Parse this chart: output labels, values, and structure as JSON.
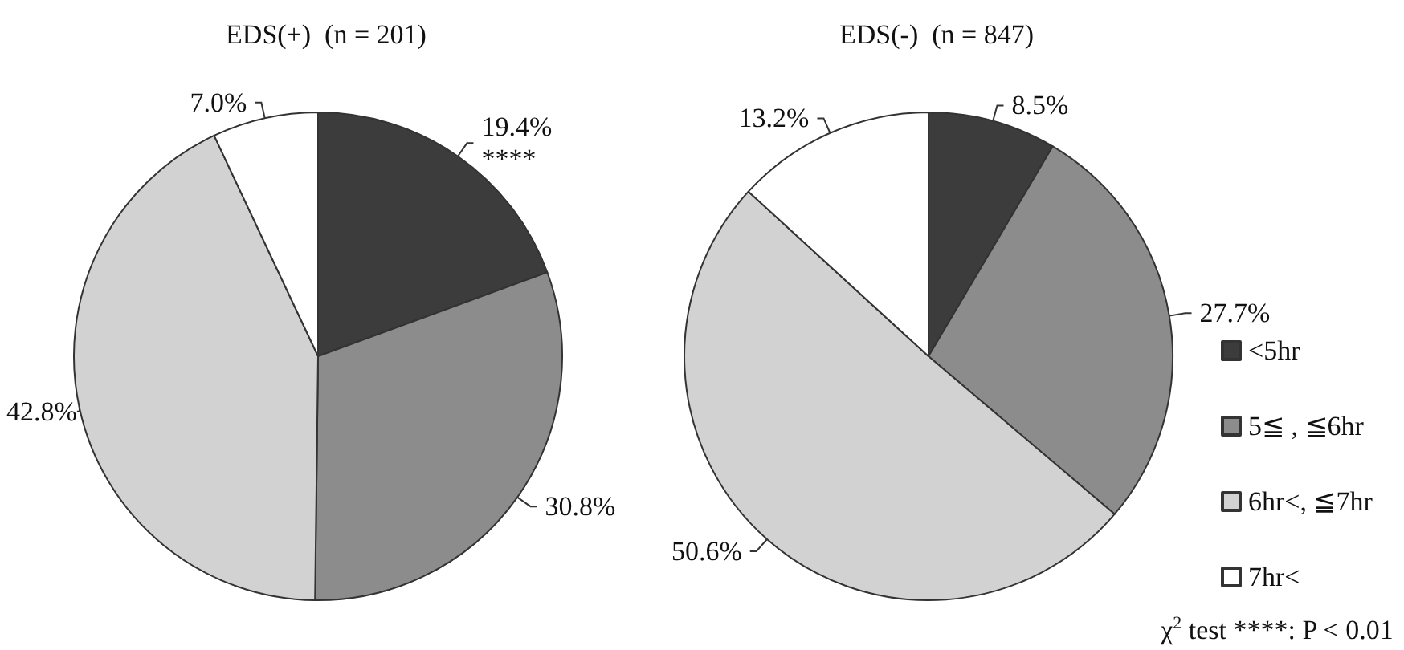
{
  "chart_data": [
    {
      "type": "pie",
      "title": "EDS(+)  (n = 201)",
      "categories": [
        null,
        null,
        null,
        null
      ],
      "values": [
        19.4,
        30.8,
        42.8,
        7.0
      ],
      "colors": [
        "#3c3c3c",
        "#8c8c8c",
        "#d2d2d2",
        "#ffffff"
      ],
      "value_labels": [
        "19.4%\n****",
        "30.8%",
        "42.8%",
        "7.0%"
      ]
    },
    {
      "type": "pie",
      "title": "EDS(-)  (n = 847)",
      "categories": [
        "<5hr",
        "5≦ , ≦6hr",
        "6hr<, ≦7hr",
        "7hr<"
      ],
      "values": [
        8.5,
        27.7,
        50.6,
        13.2
      ],
      "colors": [
        "#3c3c3c",
        "#8c8c8c",
        "#d2d2d2",
        "#ffffff"
      ],
      "value_labels": [
        "8.5%",
        "27.7%",
        "50.6%",
        "13.2%"
      ],
      "legend": "right",
      "annotations": [
        "χ$^{2}$ test ****: P < 0.01"
      ]
    }
  ]
}
